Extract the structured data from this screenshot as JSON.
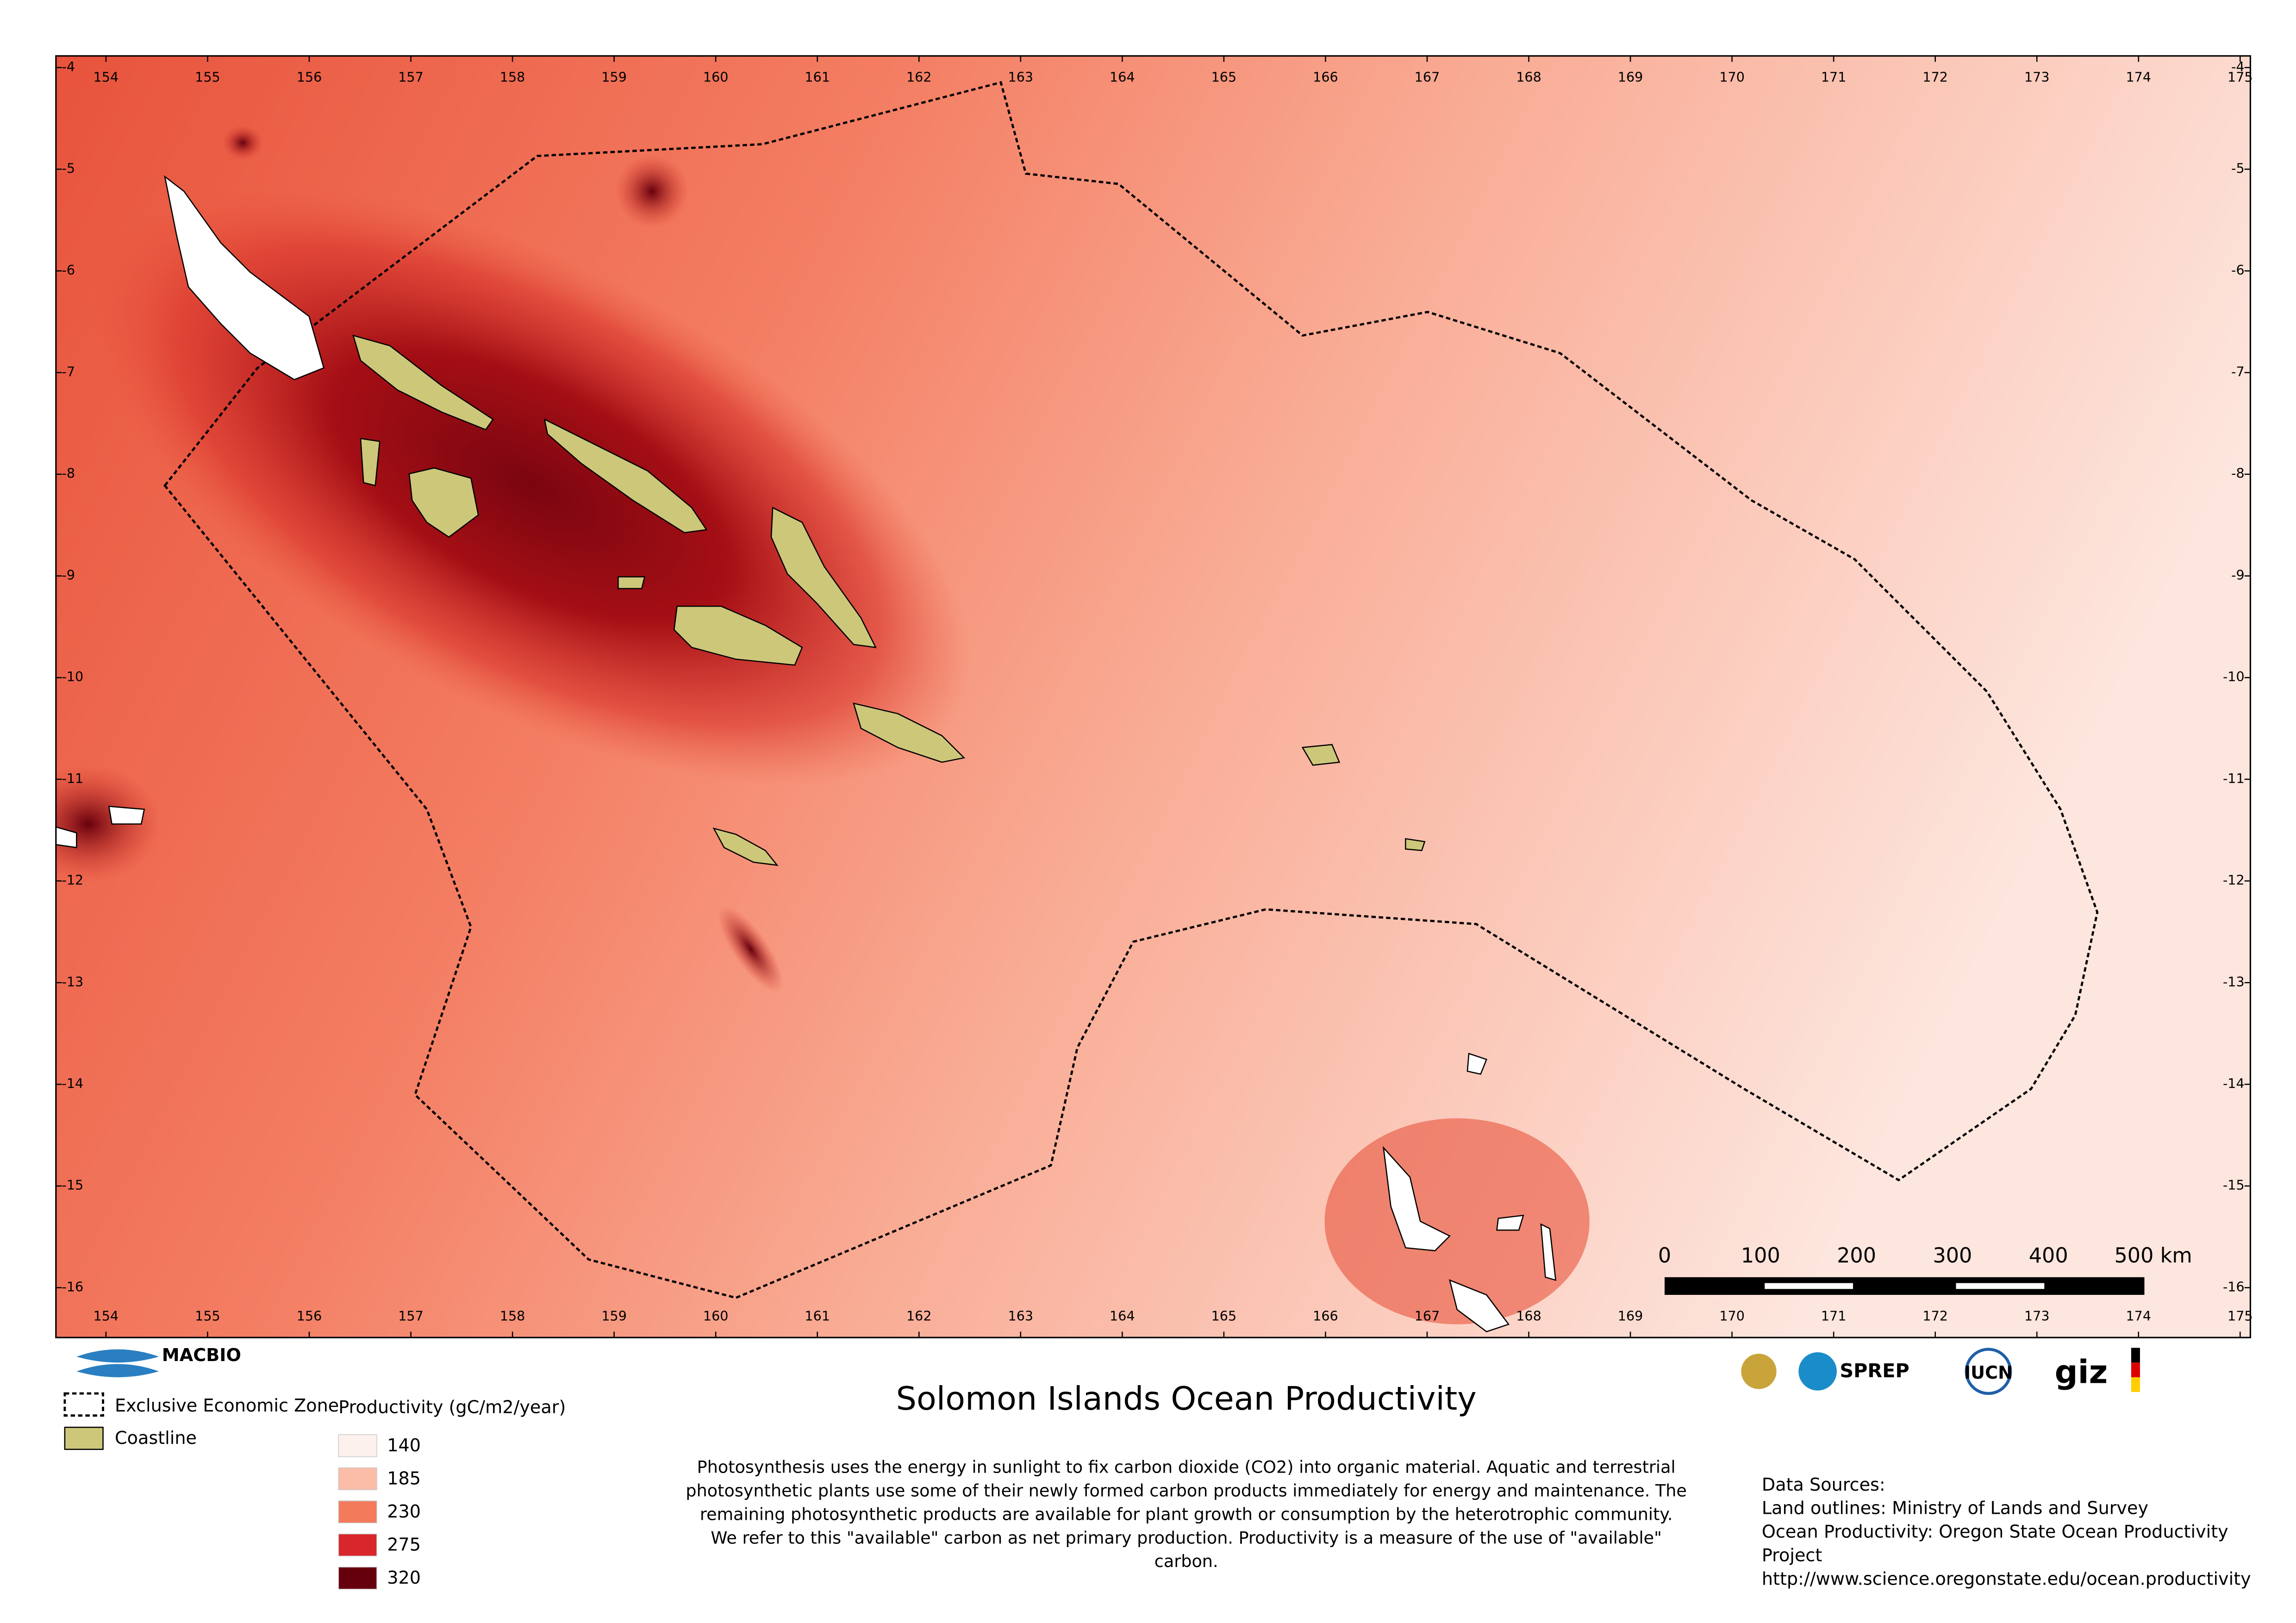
{
  "map": {
    "lon_ticks": [
      154,
      155,
      156,
      157,
      158,
      159,
      160,
      161,
      162,
      163,
      164,
      165,
      166,
      167,
      168,
      169,
      170,
      171,
      172,
      173,
      174,
      175
    ],
    "lat_ticks": [
      -4,
      -5,
      -6,
      -7,
      -8,
      -9,
      -10,
      -11,
      -12,
      -13,
      -14,
      -15,
      -16
    ],
    "scale_bar": [
      0,
      100,
      200,
      300,
      400,
      "500 km"
    ]
  },
  "title": "Solomon Islands Ocean Productivity",
  "legend": {
    "eez": "Exclusive Economic Zone",
    "coastline": "Coastline",
    "productivity_title": "Productivity (gC/m2/year)",
    "classes": [
      {
        "value": 140,
        "color": "#fdf1ee"
      },
      {
        "value": 185,
        "color": "#fbbca8"
      },
      {
        "value": 230,
        "color": "#f47a5c"
      },
      {
        "value": 275,
        "color": "#d8262a"
      },
      {
        "value": 320,
        "color": "#67000d"
      }
    ]
  },
  "description": [
    "Photosynthesis uses the energy in sunlight to fix carbon dioxide (CO2) into organic material. Aquatic and terrestrial",
    "photosynthetic plants use some of their newly formed carbon products immediately for energy and maintenance. The",
    "remaining photosynthetic products are available for plant growth or consumption by the heterotrophic community.",
    "We refer to this \"available\" carbon as net primary production. Productivity is a measure of the use of \"available\"",
    "carbon."
  ],
  "sources": [
    "Data Sources:",
    "Land outlines: Ministry of Lands and Survey",
    "Ocean Productivity: Oregon State Ocean Productivity",
    "Project",
    "http://www.science.oregonstate.edu/ocean.productivity"
  ],
  "logos": [
    "MACBIO",
    "SPREP",
    "IUCN",
    "giz"
  ]
}
